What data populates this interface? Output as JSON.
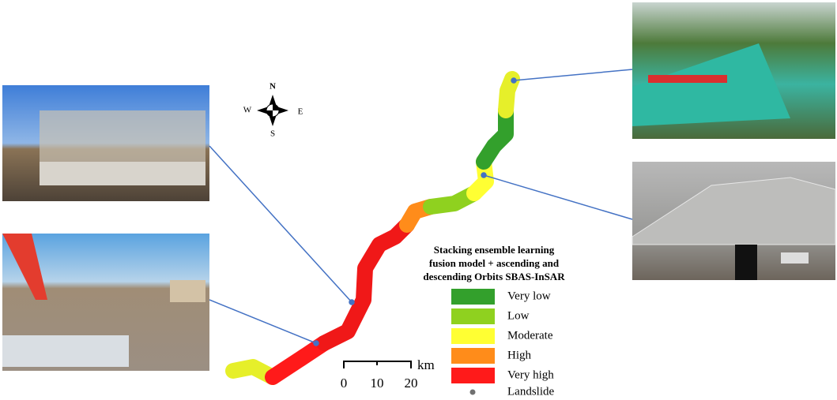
{
  "compass": {
    "north": "N",
    "east": "E",
    "south": "S",
    "west": "W"
  },
  "map_title": [
    "Stacking ensemble learning",
    "fusion model + ascending and",
    "descending Orbits SBAS-InSAR"
  ],
  "legend": [
    {
      "label": "Very low",
      "color": "#33a02c"
    },
    {
      "label": "Low",
      "color": "#8fd11f"
    },
    {
      "label": "Moderate",
      "color": "#ffff33"
    },
    {
      "label": "High",
      "color": "#ff8c1a"
    },
    {
      "label": "Very high",
      "color": "#ff1a1a"
    }
  ],
  "landslide": {
    "label": "Landslide",
    "color": "#707070"
  },
  "scale_bar": {
    "ticks": [
      "0",
      "10",
      "20"
    ],
    "unit": "km"
  }
}
